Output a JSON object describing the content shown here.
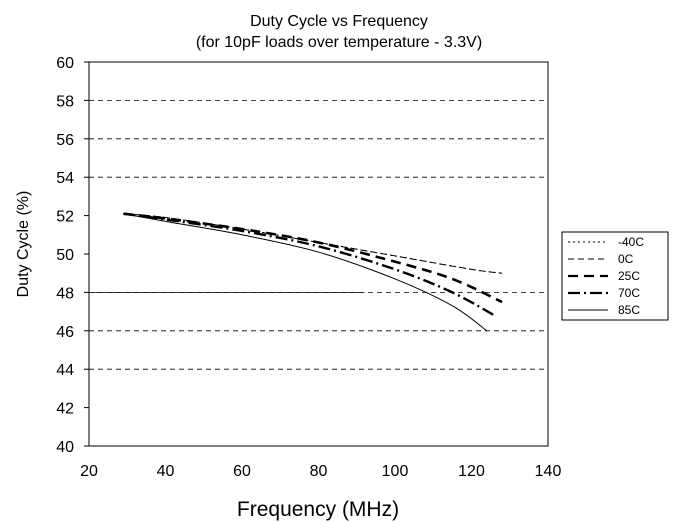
{
  "chart_data": {
    "type": "line",
    "title": "Duty Cycle vs Frequency",
    "subtitle": "(for 10pF loads over temperature - 3.3V)",
    "xlabel": "Frequency (MHz)",
    "ylabel": "Duty Cycle (%)",
    "xlim": [
      20,
      140
    ],
    "ylim": [
      40,
      60
    ],
    "xticks": [
      "20",
      "40",
      "60",
      "80",
      "100",
      "120",
      "140"
    ],
    "yticks": [
      "40",
      "42",
      "44",
      "46",
      "48",
      "50",
      "52",
      "54",
      "56",
      "58",
      "60"
    ],
    "grid_lines_y": [
      44,
      46,
      48,
      54,
      56,
      58
    ],
    "partial_grid_line": {
      "y": 48,
      "x_end": 92
    },
    "legend_position": "right",
    "series": [
      {
        "name": "-40C",
        "style": "dotted",
        "x": [
          29,
          40,
          60,
          80,
          100,
          120,
          128
        ],
        "y": [
          52.1,
          51.9,
          51.3,
          50.6,
          49.9,
          49.2,
          49.0
        ]
      },
      {
        "name": "0C",
        "style": "dashed",
        "x": [
          29,
          40,
          60,
          80,
          100,
          120,
          128
        ],
        "y": [
          52.1,
          51.9,
          51.3,
          50.6,
          49.9,
          49.2,
          49.0
        ]
      },
      {
        "name": "25C",
        "style": "thick-dashed",
        "x": [
          29,
          40,
          60,
          80,
          100,
          115,
          128
        ],
        "y": [
          52.1,
          51.85,
          51.3,
          50.6,
          49.6,
          48.7,
          47.5
        ]
      },
      {
        "name": "70C",
        "style": "dash-dot",
        "x": [
          29,
          40,
          60,
          80,
          100,
          115,
          126
        ],
        "y": [
          52.1,
          51.8,
          51.2,
          50.4,
          49.2,
          48.0,
          46.8
        ]
      },
      {
        "name": "85C",
        "style": "solid",
        "x": [
          29,
          40,
          60,
          80,
          100,
          115,
          124
        ],
        "y": [
          52.1,
          51.7,
          51.0,
          50.1,
          48.7,
          47.3,
          46.0
        ]
      }
    ]
  }
}
